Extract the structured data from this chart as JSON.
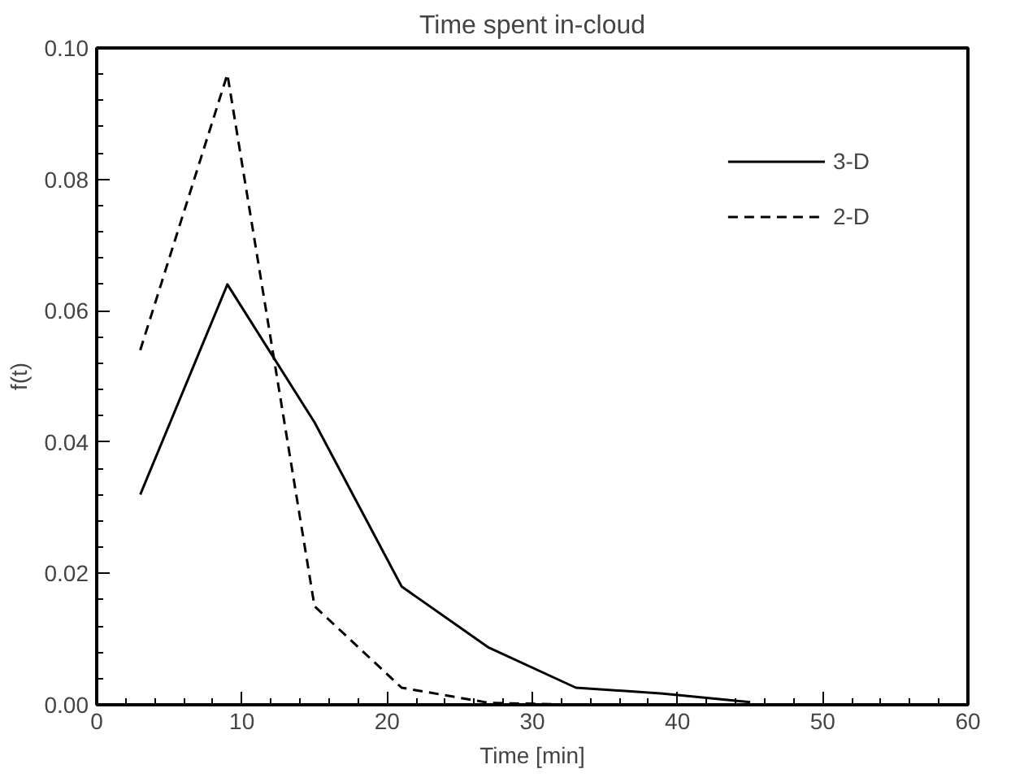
{
  "chart_data": {
    "type": "line",
    "title": "Time spent in-cloud",
    "xlabel": "Time [min]",
    "ylabel": "f(t)",
    "x": [
      3,
      9,
      15,
      21,
      27,
      33,
      39,
      45
    ],
    "series": [
      {
        "name": "3-D",
        "color": "#000000",
        "line_style": "solid",
        "values": [
          0.032,
          0.064,
          0.043,
          0.018,
          0.0087,
          0.0026,
          0.0017,
          0.0004
        ]
      },
      {
        "name": "2-D",
        "color": "#000000",
        "line_style": "dashed",
        "values": [
          0.054,
          0.096,
          0.015,
          0.0026,
          0.0003,
          0.0,
          0.0,
          0.0
        ]
      }
    ],
    "xlim": [
      0,
      60
    ],
    "ylim": [
      0,
      0.1
    ],
    "xticks": [
      0,
      10,
      20,
      30,
      40,
      50,
      60
    ],
    "yticks": [
      {
        "value": 0,
        "label": "0.00"
      },
      {
        "value": 0.02,
        "label": "0.02"
      },
      {
        "value": 0.04,
        "label": "0.04"
      },
      {
        "value": 0.06,
        "label": "0.06"
      },
      {
        "value": 0.08,
        "label": "0.08"
      },
      {
        "value": 0.1,
        "label": "0.10"
      }
    ],
    "grid": false,
    "legend": "top right",
    "marker": "none"
  }
}
